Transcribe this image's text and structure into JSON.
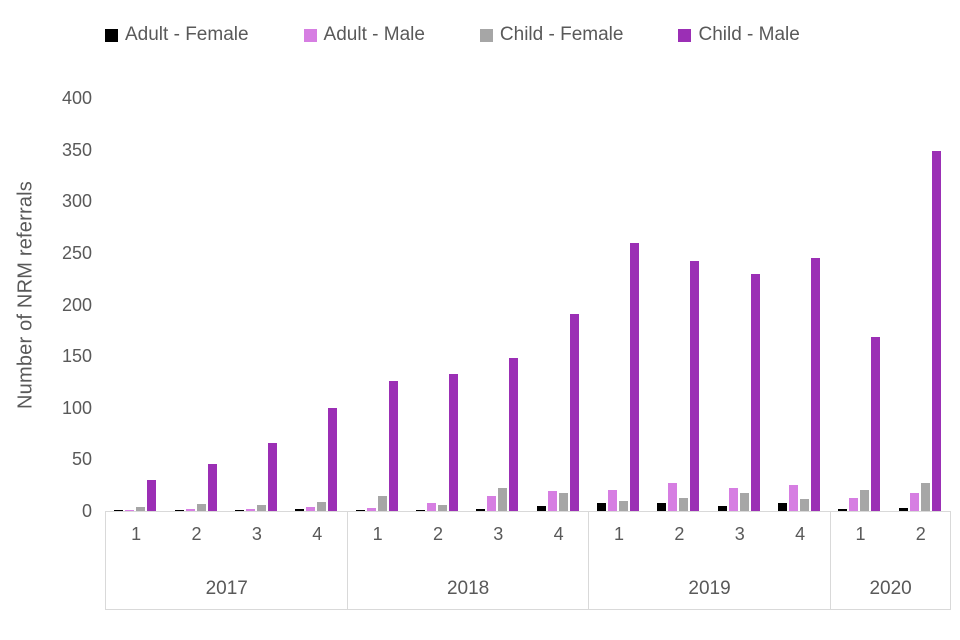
{
  "colors": {
    "axis_line": "#d9d9d9",
    "text": "#595959",
    "background": "#ffffff"
  },
  "chart_data": {
    "type": "bar",
    "title": "",
    "xlabel": "",
    "ylabel": "Number of NRM referrals",
    "ylim": [
      0,
      400
    ],
    "yticks": [
      0,
      50,
      100,
      150,
      200,
      250,
      300,
      350,
      400
    ],
    "grid": false,
    "legend_position": "top",
    "categories": [
      "1",
      "2",
      "3",
      "4",
      "1",
      "2",
      "3",
      "4",
      "1",
      "2",
      "3",
      "4",
      "1",
      "2"
    ],
    "year_groups": [
      {
        "label": "2017",
        "count": 4
      },
      {
        "label": "2018",
        "count": 4
      },
      {
        "label": "2019",
        "count": 4
      },
      {
        "label": "2020",
        "count": 2
      }
    ],
    "series": [
      {
        "name": "Adult - Female",
        "color": "#000000",
        "values": [
          1,
          1,
          1,
          2,
          1,
          1,
          2,
          5,
          8,
          8,
          5,
          8,
          2,
          3
        ]
      },
      {
        "name": "Adult - Male",
        "color": "#d67ee2",
        "values": [
          1,
          2,
          2,
          4,
          3,
          8,
          15,
          19,
          20,
          27,
          22,
          25,
          13,
          17
        ]
      },
      {
        "name": "Child - Female",
        "color": "#a6a6a6",
        "values": [
          4,
          7,
          6,
          9,
          15,
          6,
          22,
          17,
          10,
          13,
          17,
          12,
          20,
          27
        ]
      },
      {
        "name": "Child - Male",
        "color": "#9b2fb5",
        "values": [
          30,
          46,
          66,
          100,
          126,
          133,
          148,
          191,
          260,
          242,
          230,
          245,
          169,
          349
        ]
      }
    ]
  }
}
